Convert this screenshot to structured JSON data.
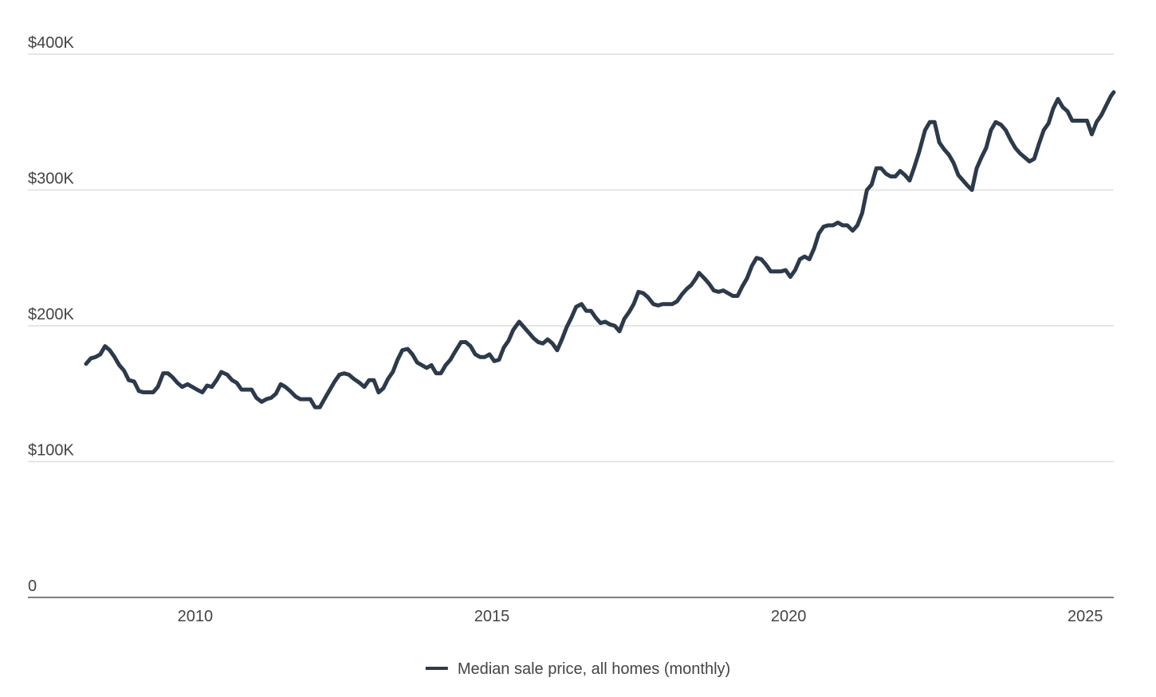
{
  "chart_data": {
    "type": "line",
    "x": [
      2008.16,
      2008.24,
      2008.32,
      2008.4,
      2008.48,
      2008.56,
      2008.64,
      2008.72,
      2008.8,
      2008.88,
      2008.97,
      2009.05,
      2009.13,
      2009.21,
      2009.29,
      2009.37,
      2009.46,
      2009.54,
      2009.62,
      2009.7,
      2009.78,
      2009.87,
      2009.95,
      2010.03,
      2010.12,
      2010.2,
      2010.28,
      2010.36,
      2010.44,
      2010.54,
      2010.62,
      2010.7,
      2010.78,
      2010.86,
      2010.95,
      2011.03,
      2011.12,
      2011.2,
      2011.28,
      2011.36,
      2011.44,
      2011.52,
      2011.6,
      2011.69,
      2011.77,
      2011.85,
      2011.94,
      2012.02,
      2012.1,
      2012.19,
      2012.27,
      2012.35,
      2012.43,
      2012.51,
      2012.59,
      2012.67,
      2012.77,
      2012.85,
      2012.93,
      2013.01,
      2013.09,
      2013.17,
      2013.25,
      2013.33,
      2013.41,
      2013.49,
      2013.58,
      2013.66,
      2013.74,
      2013.82,
      2013.9,
      2013.98,
      2014.06,
      2014.14,
      2014.22,
      2014.3,
      2014.38,
      2014.48,
      2014.56,
      2014.64,
      2014.72,
      2014.8,
      2014.88,
      2014.96,
      2015.04,
      2015.12,
      2015.2,
      2015.28,
      2015.36,
      2015.46,
      2015.54,
      2015.62,
      2015.7,
      2015.78,
      2015.86,
      2015.94,
      2016.02,
      2016.1,
      2016.18,
      2016.26,
      2016.34,
      2016.42,
      2016.51,
      2016.59,
      2016.67,
      2016.75,
      2016.83,
      2016.91,
      2016.99,
      2017.07,
      2017.15,
      2017.23,
      2017.31,
      2017.39,
      2017.47,
      2017.55,
      2017.63,
      2017.72,
      2017.8,
      2017.88,
      2017.96,
      2018.04,
      2018.12,
      2018.2,
      2018.28,
      2018.36,
      2018.44,
      2018.49,
      2018.58,
      2018.66,
      2018.74,
      2018.82,
      2018.9,
      2018.98,
      2019.06,
      2019.14,
      2019.22,
      2019.3,
      2019.38,
      2019.46,
      2019.54,
      2019.62,
      2019.7,
      2019.78,
      2019.87,
      2019.95,
      2020.03,
      2020.11,
      2020.19,
      2020.27,
      2020.35,
      2020.43,
      2020.51,
      2020.59,
      2020.67,
      2020.75,
      2020.83,
      2020.91,
      2020.99,
      2021.08,
      2021.16,
      2021.24,
      2021.32,
      2021.4,
      2021.48,
      2021.56,
      2021.64,
      2021.72,
      2021.8,
      2021.88,
      2021.96,
      2022.04,
      2022.12,
      2022.2,
      2022.3,
      2022.38,
      2022.46,
      2022.54,
      2022.62,
      2022.7,
      2022.78,
      2022.86,
      2022.94,
      2023.02,
      2023.09,
      2023.17,
      2023.25,
      2023.33,
      2023.41,
      2023.49,
      2023.58,
      2023.66,
      2023.74,
      2023.82,
      2023.9,
      2023.98,
      2024.06,
      2024.14,
      2024.22,
      2024.3,
      2024.38,
      2024.46,
      2024.54,
      2024.62,
      2024.7,
      2024.78,
      2024.86,
      2024.95,
      2025.03,
      2025.11,
      2025.19,
      2025.27,
      2025.35,
      2025.43,
      2025.48
    ],
    "series": [
      {
        "name": "Median sale price, all homes (monthly)",
        "color": "#2d3a4b",
        "values": [
          172000,
          176000,
          177000,
          179000,
          185000,
          182000,
          177000,
          171000,
          167000,
          160000,
          159000,
          152000,
          151000,
          151000,
          151000,
          155000,
          165000,
          165000,
          162000,
          158000,
          155000,
          157000,
          155000,
          153000,
          151000,
          156000,
          155000,
          160000,
          166000,
          164000,
          160000,
          158000,
          153000,
          153000,
          153000,
          147000,
          144000,
          146000,
          147000,
          150000,
          157000,
          155000,
          152000,
          148000,
          146000,
          146000,
          146000,
          140000,
          140000,
          147000,
          153000,
          159000,
          164000,
          165000,
          164000,
          161000,
          158000,
          155000,
          160000,
          160000,
          151000,
          154000,
          161000,
          166000,
          175000,
          182000,
          183000,
          179000,
          173000,
          171000,
          169000,
          171000,
          165000,
          165000,
          171000,
          175000,
          181000,
          188000,
          188000,
          185000,
          179000,
          177000,
          177000,
          179000,
          174000,
          175000,
          184000,
          189000,
          197000,
          203000,
          199000,
          195000,
          191000,
          188000,
          187000,
          190000,
          187000,
          182000,
          190000,
          199000,
          206000,
          214000,
          216000,
          211000,
          211000,
          206000,
          202000,
          203000,
          201000,
          200000,
          196000,
          205000,
          210000,
          216000,
          225000,
          224000,
          221000,
          216000,
          215000,
          216000,
          216000,
          216000,
          218000,
          223000,
          227000,
          230000,
          235000,
          239000,
          235000,
          231000,
          226000,
          225000,
          226000,
          224000,
          222000,
          222000,
          229000,
          235000,
          244000,
          250000,
          249000,
          245000,
          240000,
          240000,
          240000,
          241000,
          236000,
          241000,
          249000,
          251000,
          249000,
          257000,
          268000,
          273000,
          274000,
          274000,
          276000,
          274000,
          274000,
          270000,
          274000,
          283000,
          300000,
          304000,
          316000,
          316000,
          312000,
          310000,
          310000,
          314000,
          311000,
          307000,
          317000,
          328000,
          344000,
          350000,
          350000,
          335000,
          330000,
          326000,
          320000,
          311000,
          307000,
          303000,
          300000,
          316000,
          324000,
          331000,
          344000,
          350000,
          348000,
          344000,
          337000,
          331000,
          327000,
          324000,
          321000,
          323000,
          334000,
          344000,
          349000,
          360000,
          367000,
          361000,
          358000,
          351000,
          351000,
          351000,
          351000,
          341000,
          350000,
          355000,
          362000,
          369000,
          372000
        ]
      }
    ],
    "xlim": [
      2007.18,
      2025.48
    ],
    "xticks": [
      2010,
      2015,
      2020,
      2025
    ],
    "ylim": [
      0,
      400000
    ],
    "yticks": [
      0,
      {
        "value": 100000,
        "label": "$100K"
      },
      {
        "value": 200000,
        "label": "$200K"
      },
      {
        "value": 300000,
        "label": "$300K"
      },
      {
        "value": 400000,
        "label": "$400K"
      }
    ],
    "grid": true
  }
}
